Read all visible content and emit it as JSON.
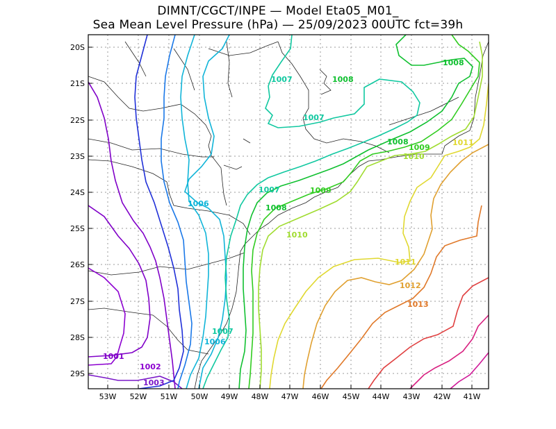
{
  "header": {
    "line1": "DIMNT/CGCT/INPE —  Model Eta05_M01_",
    "line2": "Sea Mean Level Pressure (hPa) — 25/09/2023 00UTC fct=39h"
  },
  "axes": {
    "lat_ticks": [
      "20S",
      "21S",
      "22S",
      "23S",
      "24S",
      "25S",
      "26S",
      "27S",
      "28S",
      "29S"
    ],
    "lon_ticks": [
      "53W",
      "52W",
      "51W",
      "50W",
      "49W",
      "48W",
      "47W",
      "46W",
      "45W",
      "44W",
      "43W",
      "42W",
      "41W"
    ]
  },
  "colors": {
    "1001": "#8000c8",
    "1002": "#8c00d0",
    "1003": "#7a18c8",
    "1004": "#2030d8",
    "1005": "#1a78e8",
    "1006": "#10b4d8",
    "1007": "#10c8a0",
    "1008": "#10c030",
    "1009": "#30cc20",
    "1010": "#a0dc30",
    "1011": "#e0d830",
    "1012": "#e0a030",
    "1013": "#e07828",
    "1014": "#e04040",
    "1015": "#d82080",
    "1016": "#d01898"
  },
  "contour_labels": [
    {
      "text": "1001",
      "level": "1001"
    },
    {
      "text": "1002",
      "level": "1002"
    },
    {
      "text": "1003",
      "level": "1003"
    },
    {
      "text": "1006",
      "level": "1006"
    },
    {
      "text": "1006",
      "level": "1006"
    },
    {
      "text": "1007",
      "level": "1007"
    },
    {
      "text": "1007",
      "level": "1007"
    },
    {
      "text": "1007",
      "level": "1007"
    },
    {
      "text": "1007",
      "level": "1007"
    },
    {
      "text": "1008",
      "level": "1008"
    },
    {
      "text": "1008",
      "level": "1008"
    },
    {
      "text": "1008",
      "level": "1008"
    },
    {
      "text": "1008",
      "level": "1008"
    },
    {
      "text": "1009",
      "level": "1009"
    },
    {
      "text": "1009",
      "level": "1009"
    },
    {
      "text": "1010",
      "level": "1010"
    },
    {
      "text": "1010",
      "level": "1010"
    },
    {
      "text": "1011",
      "level": "1011"
    },
    {
      "text": "1011",
      "level": "1011"
    },
    {
      "text": "1012",
      "level": "1012"
    },
    {
      "text": "1013",
      "level": "1013"
    }
  ]
}
